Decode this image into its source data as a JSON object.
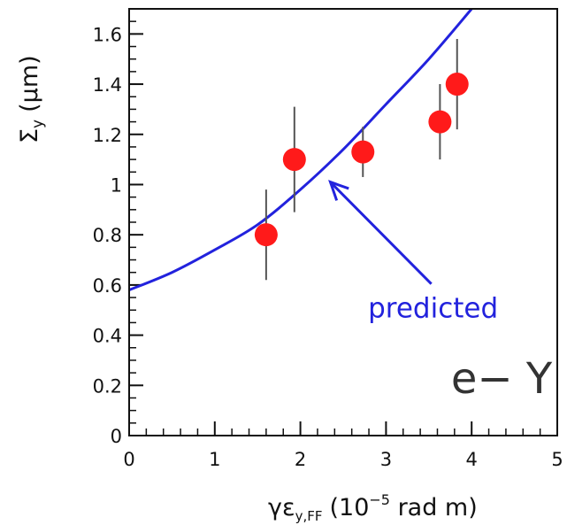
{
  "chart_data": {
    "type": "scatter",
    "xlabel": "γε_y,FF (10^-5 rad m)",
    "xlabel_parts": {
      "gamma": "γ",
      "eps": "ε",
      "sub": "y,FF",
      "pre": "(10",
      "exp": "−5",
      "post": " rad m)"
    },
    "ylabel": "Σ_y (μm)",
    "ylabel_parts": {
      "sym": "Σ",
      "sub": "y",
      "unit": "(μm)"
    },
    "xlim": [
      0,
      5
    ],
    "ylim": [
      0,
      1.7
    ],
    "x_ticks": [
      {
        "v": 0,
        "label": "0"
      },
      {
        "v": 1,
        "label": "1"
      },
      {
        "v": 2,
        "label": "2"
      },
      {
        "v": 3,
        "label": "3"
      },
      {
        "v": 4,
        "label": "4"
      },
      {
        "v": 5,
        "label": "5"
      }
    ],
    "y_ticks": [
      {
        "v": 0,
        "label": "0"
      },
      {
        "v": 0.2,
        "label": "0.2"
      },
      {
        "v": 0.4,
        "label": "0.4"
      },
      {
        "v": 0.6,
        "label": "0.6"
      },
      {
        "v": 0.8,
        "label": "0.8"
      },
      {
        "v": 1.0,
        "label": "1"
      },
      {
        "v": 1.2,
        "label": "1.2"
      },
      {
        "v": 1.4,
        "label": "1.4"
      },
      {
        "v": 1.6,
        "label": "1.6"
      }
    ],
    "x_minor_step": 0.2,
    "y_minor_step": 0.05,
    "grid": false,
    "data_color": "#ff1a1a",
    "curve_color": "#2222dd",
    "points": [
      {
        "x": 1.6,
        "y": 0.8,
        "err": 0.18
      },
      {
        "x": 1.93,
        "y": 1.1,
        "err": 0.21
      },
      {
        "x": 2.73,
        "y": 1.13,
        "err": 0.1
      },
      {
        "x": 3.63,
        "y": 1.25,
        "err": 0.15
      },
      {
        "x": 3.83,
        "y": 1.4,
        "err": 0.18
      }
    ],
    "curve": {
      "name": "predicted",
      "x": [
        0,
        0.5,
        1.0,
        1.5,
        2.0,
        2.5,
        3.0,
        3.5,
        4.0
      ],
      "y": [
        0.58,
        0.65,
        0.74,
        0.84,
        0.98,
        1.14,
        1.32,
        1.5,
        1.7
      ]
    },
    "annotations": [
      {
        "text": "predicted",
        "x": 3.55,
        "y": 0.47,
        "arrow_to": [
          2.35,
          1.01
        ]
      },
      {
        "text": "e− Y",
        "x": 4.35,
        "y": 0.17
      }
    ]
  }
}
